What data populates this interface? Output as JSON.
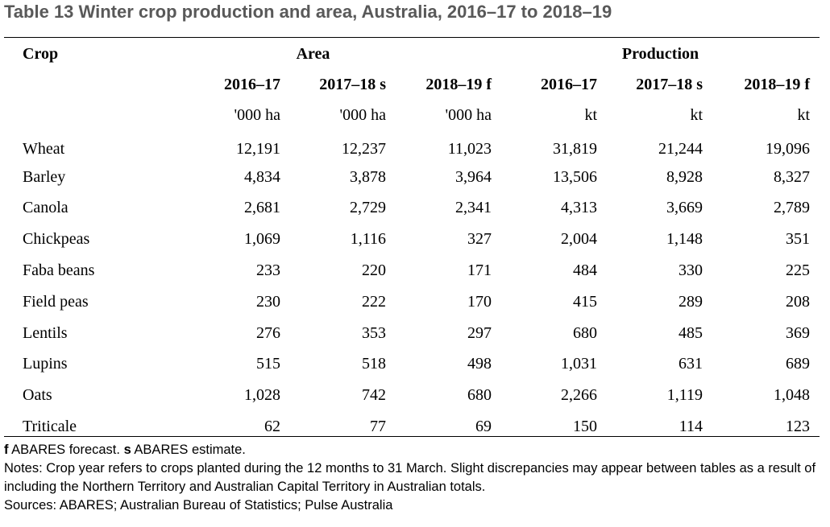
{
  "title": "Table 13 Winter crop production and area, Australia, 2016–17 to 2018–19",
  "header": {
    "crop_label": "Crop",
    "area_label": "Area",
    "production_label": "Production",
    "years": [
      "2016–17",
      "2017–18 s",
      "2018–19 f",
      "2016–17",
      "2017–18 s",
      "2018–19 f"
    ],
    "units": [
      "'000 ha",
      "'000 ha",
      "'000 ha",
      "kt",
      "kt",
      "kt"
    ]
  },
  "rows": [
    {
      "crop": "Wheat",
      "values": [
        "12,191",
        "12,237",
        "11,023",
        "31,819",
        "21,244",
        "19,096"
      ]
    },
    {
      "crop": "Barley",
      "values": [
        "4,834",
        "3,878",
        "3,964",
        "13,506",
        "8,928",
        "8,327"
      ]
    },
    {
      "crop": "Canola",
      "values": [
        "2,681",
        "2,729",
        "2,341",
        "4,313",
        "3,669",
        "2,789"
      ]
    },
    {
      "crop": "Chickpeas",
      "values": [
        "1,069",
        "1,116",
        "327",
        "2,004",
        "1,148",
        "351"
      ]
    },
    {
      "crop": "Faba beans",
      "values": [
        "233",
        "220",
        "171",
        "484",
        "330",
        "225"
      ]
    },
    {
      "crop": "Field peas",
      "values": [
        "230",
        "222",
        "170",
        "415",
        "289",
        "208"
      ]
    },
    {
      "crop": "Lentils",
      "values": [
        "276",
        "353",
        "297",
        "680",
        "485",
        "369"
      ]
    },
    {
      "crop": "Lupins",
      "values": [
        "515",
        "518",
        "498",
        "1,031",
        "631",
        "689"
      ]
    },
    {
      "crop": "Oats",
      "values": [
        "1,028",
        "742",
        "680",
        "2,266",
        "1,119",
        "1,048"
      ]
    },
    {
      "crop": "Triticale",
      "values": [
        "62",
        "77",
        "69",
        "150",
        "114",
        "123"
      ]
    }
  ],
  "footer": {
    "f_key": "f",
    "f_text": " ABARES forecast. ",
    "s_key": "s",
    "s_text": " ABARES estimate.",
    "notes": "Notes: Crop year refers to crops planted during the 12 months to 31 March. Slight discrepancies may appear between tables as a result of including the Northern Territory and Australian Capital Territory in Australian totals.",
    "sources": "Sources: ABARES; Australian Bureau of Statistics; Pulse Australia"
  }
}
